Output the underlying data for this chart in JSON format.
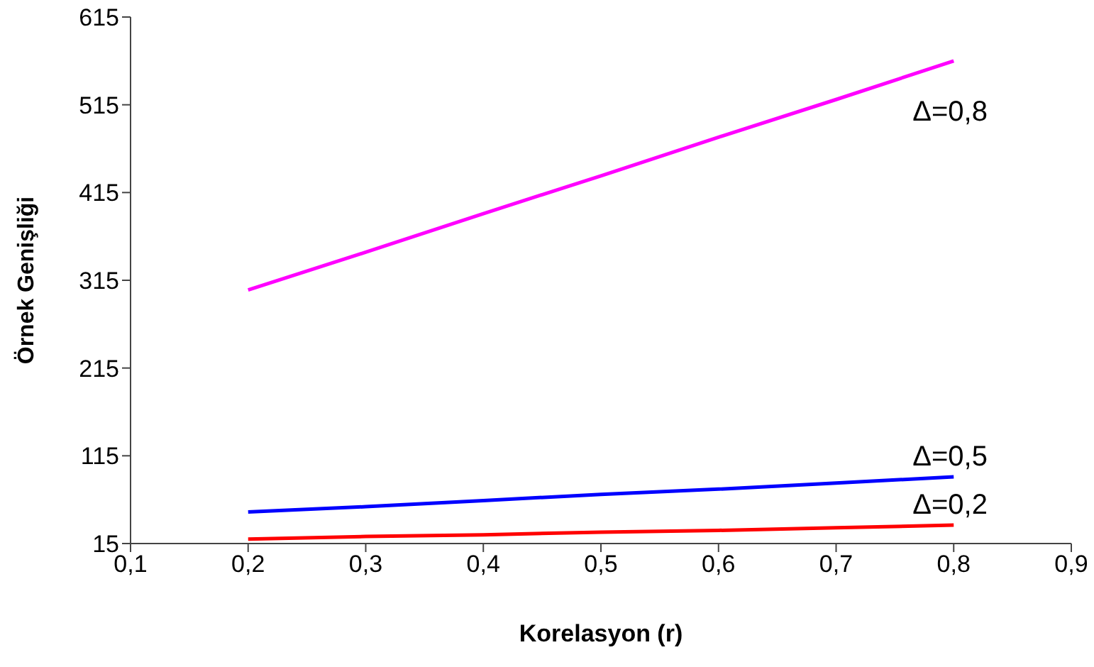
{
  "chart_data": {
    "type": "line",
    "xlabel": "Korelasyon (r)",
    "ylabel": "Örnek Genişliği",
    "x": [
      0.2,
      0.3,
      0.4,
      0.5,
      0.6,
      0.7,
      0.8
    ],
    "series": [
      {
        "name": "Δ=0,8",
        "color": "#ff00ff",
        "values": [
          304,
          347,
          391,
          434,
          478,
          521,
          565
        ]
      },
      {
        "name": "Δ=0,5",
        "color": "#0000ff",
        "values": [
          51,
          57,
          64,
          71,
          77,
          84,
          91
        ]
      },
      {
        "name": "Δ=0,2",
        "color": "#ff0000",
        "values": [
          20,
          23,
          25,
          28,
          30,
          33,
          36
        ]
      }
    ],
    "xlim": [
      0.1,
      0.9
    ],
    "xticks": [
      {
        "value": 0.1,
        "label": "0,1"
      },
      {
        "value": 0.2,
        "label": "0,2"
      },
      {
        "value": 0.3,
        "label": "0,3"
      },
      {
        "value": 0.4,
        "label": "0,4"
      },
      {
        "value": 0.5,
        "label": "0,5"
      },
      {
        "value": 0.6,
        "label": "0,6"
      },
      {
        "value": 0.7,
        "label": "0,7"
      },
      {
        "value": 0.8,
        "label": "0,8"
      },
      {
        "value": 0.9,
        "label": "0,9"
      }
    ],
    "ylim": [
      15,
      615
    ],
    "yticks": [
      15,
      115,
      215,
      315,
      415,
      515,
      615
    ],
    "grid": false,
    "legend": false,
    "marker": "none",
    "line_style": "solid"
  }
}
